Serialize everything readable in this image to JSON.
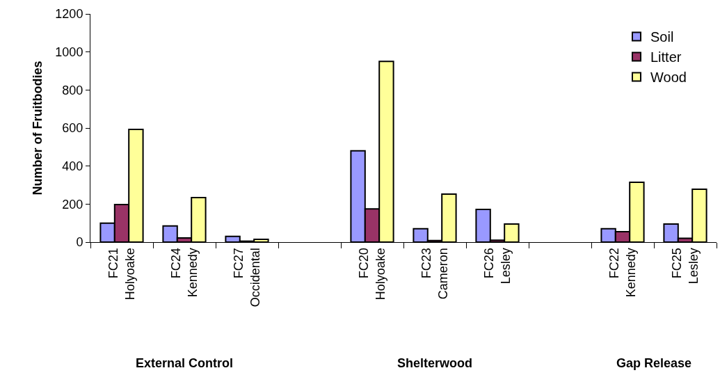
{
  "chart_data": {
    "type": "bar",
    "ylabel": "Number of Fruitbodies",
    "categories": [
      "FC21\nHolyoake",
      "FC24\nKennedy",
      "FC27\nOccidental",
      null,
      "FC20\nHolyoake",
      "FC23\nCameron",
      "FC26\nLesley",
      null,
      "FC22\nKennedy",
      "FC25\nLesley"
    ],
    "series": [
      {
        "name": "Soil",
        "color": "#9999ff",
        "values": [
          100,
          85,
          30,
          null,
          480,
          70,
          172,
          null,
          70,
          95
        ]
      },
      {
        "name": "Litter",
        "color": "#993366",
        "values": [
          198,
          22,
          5,
          null,
          175,
          8,
          10,
          null,
          55,
          20
        ]
      },
      {
        "name": "Wood",
        "color": "#ffff99",
        "values": [
          593,
          234,
          15,
          null,
          950,
          252,
          95,
          null,
          315,
          278
        ]
      }
    ],
    "annotations": [
      "External Control",
      "Shelterwood",
      "Gap Release"
    ],
    "ylim": [
      0,
      1200
    ],
    "yticks": [
      0,
      200,
      400,
      600,
      800,
      1000,
      1200
    ],
    "grid": false,
    "legend": "top right"
  }
}
